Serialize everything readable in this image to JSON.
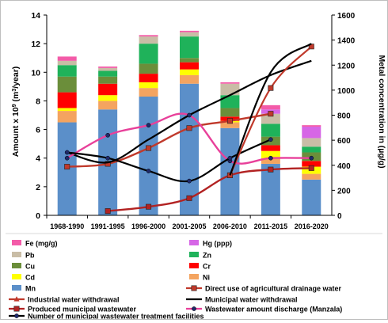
{
  "chart_data": {
    "type": "bar",
    "stacked": true,
    "categories": [
      "1968-1990",
      "1991-1995",
      "1996-2000",
      "2001-2005",
      "2006-2010",
      "2011-2015",
      "2016-2020"
    ],
    "ylabel_left": {
      "prefix": "Amount x 10",
      "sup1": "9",
      "mid": " (m",
      "sup2": "3",
      "suffix": "/year)"
    },
    "ylabel_right": "Metal concentration in (µg/g)",
    "ylim_left": [
      0,
      14
    ],
    "ylim_right": [
      0,
      1600
    ],
    "yticks_left": [
      "0",
      "2",
      "4",
      "6",
      "8",
      "10",
      "12",
      "14"
    ],
    "yticks_right": [
      "0",
      "200",
      "400",
      "600",
      "800",
      "1000",
      "1200",
      "1400",
      "1600"
    ],
    "bar_stack_order": [
      "Mn",
      "Ni",
      "Cd",
      "Cr",
      "Cu",
      "Zn",
      "Pb",
      "Hg (ppp)",
      "Fe (mg/g)"
    ],
    "bar_series": [
      {
        "name": "Mn",
        "color": "#5b8fc9",
        "values": [
          6.5,
          7.4,
          8.3,
          9.2,
          6.1,
          3.6,
          2.5
        ]
      },
      {
        "name": "Ni",
        "color": "#f4a460",
        "values": [
          0.8,
          0.6,
          0.6,
          0.6,
          0.4,
          0.4,
          0.4
        ]
      },
      {
        "name": "Cd",
        "color": "#ffff00",
        "values": [
          0.2,
          0.4,
          0.4,
          0.4,
          0.1,
          0.5,
          0.5
        ]
      },
      {
        "name": "Cr",
        "color": "#ff0000",
        "values": [
          1.1,
          0.8,
          0.6,
          0.5,
          0.3,
          0.4,
          0.4
        ]
      },
      {
        "name": "Cu",
        "color": "#6b8e3a",
        "values": [
          1.1,
          0.5,
          0.7,
          0.3,
          0.6,
          0.6,
          0.6
        ]
      },
      {
        "name": "Zn",
        "color": "#1fb25a",
        "values": [
          0.8,
          0.4,
          1.4,
          1.5,
          0.9,
          0.9,
          0.4
        ]
      },
      {
        "name": "Pb",
        "color": "#c9bda6",
        "values": [
          0.3,
          0.2,
          0.5,
          0.3,
          0.8,
          0.7,
          0.6
        ]
      },
      {
        "name": "Hg (ppp)",
        "color": "#d666e6",
        "values": [
          0.0,
          0.0,
          0.0,
          0.0,
          0.0,
          0.3,
          0.8
        ]
      },
      {
        "name": "Fe (mg/g)",
        "color": "#f35ba8",
        "values": [
          0.3,
          0.1,
          0.1,
          0.1,
          0.1,
          0.3,
          0.1
        ]
      }
    ],
    "line_series": [
      {
        "name": "Direct use of agricultural drainage water",
        "color": "#c0392b",
        "marker": "square",
        "values": [
          3.4,
          3.6,
          4.7,
          6.1,
          6.6,
          7.1,
          null
        ]
      },
      {
        "name": "Industrial water withdrawal",
        "color": "#c0392b",
        "marker": "triangle",
        "values": [
          null,
          null,
          null,
          null,
          null,
          null,
          null
        ]
      },
      {
        "name": "Municipal water withdrawal",
        "color": "#000000",
        "marker": "none",
        "values": [
          4.4,
          3.7,
          5.3,
          7.0,
          8.4,
          9.8,
          10.8
        ]
      },
      {
        "name": "Produced municipal wastewater",
        "color": "#b22222",
        "marker": "square",
        "values": [
          null,
          0.3,
          0.6,
          1.2,
          2.8,
          3.2,
          3.3
        ]
      },
      {
        "name": "Wastewater amount discharge (Manzala)",
        "color": "#e8409a",
        "marker": "circle",
        "values": [
          4.0,
          5.6,
          6.3,
          7.0,
          3.8,
          4.0,
          4.0
        ]
      },
      {
        "name": "Number of municipal wastewater treatment facilities",
        "color": "#000000",
        "marker": "circle",
        "values": [
          4.4,
          4.0,
          3.1,
          2.4,
          4.0,
          5.3,
          null
        ]
      }
    ],
    "extra_lines": [
      {
        "name": "Drainage late segment",
        "color": "#c0392b",
        "marker": "square",
        "values": [
          null,
          null,
          null,
          null,
          2.8,
          8.9,
          11.8
        ]
      },
      {
        "name": "Facilities late segment",
        "color": "#000000",
        "marker": "none",
        "values": [
          null,
          null,
          null,
          null,
          2.8,
          10.0,
          12.0
        ]
      }
    ],
    "legend": {
      "placement": "bottom",
      "left_column": [
        "Fe (mg/g)",
        "Pb",
        "Cu",
        "Cd",
        "Mn",
        "Industrial water withdrawal",
        "Produced municipal wastewater",
        "Number of municipal wastewater treatment facilities"
      ],
      "right_column": [
        "Hg (ppp)",
        "Zn",
        "Cr",
        "Ni",
        "Direct use of agricultural drainage water",
        "Municipal water withdrawal",
        "Wastewater amount discharge (Manzala)"
      ]
    }
  }
}
